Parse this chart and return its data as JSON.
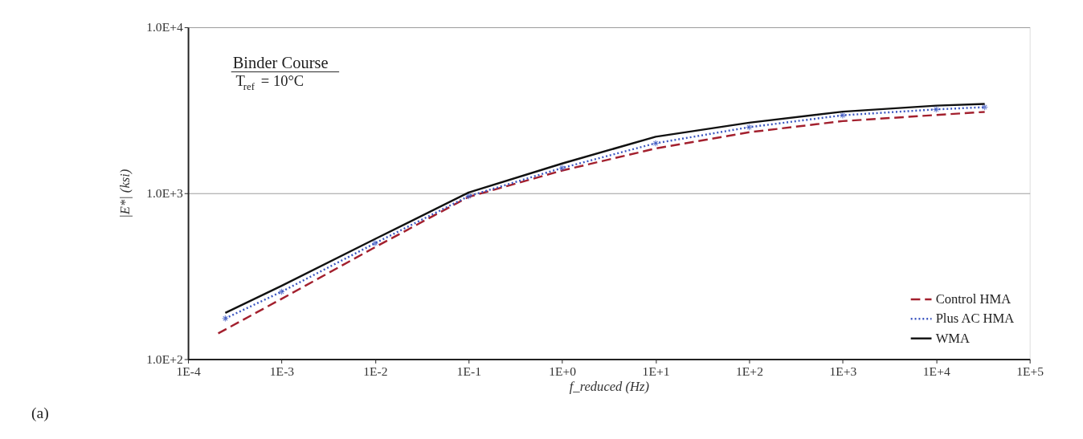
{
  "chart_data": {
    "type": "line",
    "xlabel": "f_reduced (Hz)",
    "ylabel": "|E*| (ksi)",
    "log": "xy",
    "grid": "y",
    "legend": "bottom right",
    "xlim": [
      0.0001,
      100000
    ],
    "ylim": [
      100,
      10000
    ],
    "xticks": [
      {
        "value": 0.0001,
        "label": "1E-4"
      },
      {
        "value": 0.001,
        "label": "1E-3"
      },
      {
        "value": 0.01,
        "label": "1E-2"
      },
      {
        "value": 0.1,
        "label": "1E-1"
      },
      {
        "value": 1,
        "label": "1E+0"
      },
      {
        "value": 10,
        "label": "1E+1"
      },
      {
        "value": 100,
        "label": "1E+2"
      },
      {
        "value": 1000,
        "label": "1E+3"
      },
      {
        "value": 10000,
        "label": "1E+4"
      },
      {
        "value": 100000,
        "label": "1E+5"
      }
    ],
    "yticks": [
      {
        "value": 100,
        "label": "1.0E+2"
      },
      {
        "value": 1000,
        "label": "1.0E+3"
      },
      {
        "value": 10000,
        "label": "1.0E+4"
      }
    ],
    "annotations": [
      "Binder Course",
      "T$_{ref}$ = 10°C",
      "(a)"
    ],
    "series": [
      {
        "name": "Control HMA",
        "color": "#a3202e",
        "line_style": "dashed",
        "marker": "none",
        "x": [
          0.00021,
          0.001,
          0.01,
          0.1,
          1,
          10,
          100,
          1000,
          10000,
          33000
        ],
        "values": [
          143,
          231,
          473,
          950,
          1370,
          1860,
          2330,
          2720,
          2960,
          3090
        ]
      },
      {
        "name": "Plus AC HMA",
        "color": "#3a55c0",
        "line_style": "dotted",
        "marker": "cross",
        "x": [
          0.00025,
          0.001,
          0.01,
          0.1,
          1,
          10,
          100,
          1000,
          10000,
          33000
        ],
        "values": [
          176,
          255,
          500,
          960,
          1420,
          2000,
          2500,
          2950,
          3200,
          3300
        ]
      },
      {
        "name": "WMA",
        "color": "#111111",
        "line_style": "solid",
        "marker": "none",
        "x": [
          0.00025,
          0.001,
          0.01,
          0.1,
          1,
          10,
          100,
          1000,
          10000,
          33000
        ],
        "values": [
          190,
          277,
          530,
          1010,
          1510,
          2190,
          2660,
          3100,
          3370,
          3450
        ]
      }
    ]
  }
}
